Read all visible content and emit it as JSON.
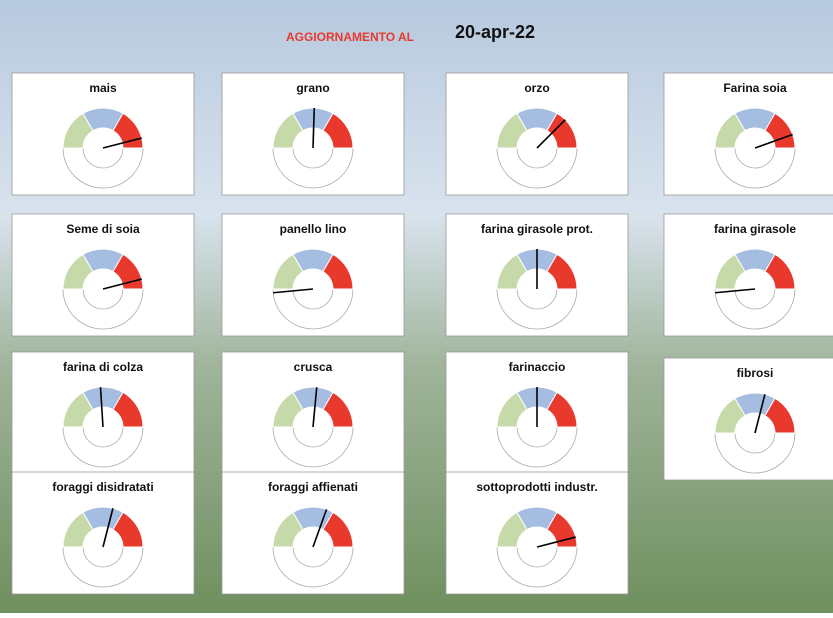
{
  "header": {
    "label": "AGGIORNAMENTO AL",
    "date": "20-apr-22"
  },
  "chart_data": [
    {
      "type": "gauge",
      "title": "mais",
      "value": 92,
      "ylim": [
        0,
        100
      ],
      "colors": [
        "#c6d9a9",
        "#a5bde1",
        "#e8392c"
      ]
    },
    {
      "type": "gauge",
      "title": "grano",
      "value": 51,
      "ylim": [
        0,
        100
      ],
      "colors": [
        "#c6d9a9",
        "#a5bde1",
        "#e8392c"
      ]
    },
    {
      "type": "gauge",
      "title": "orzo",
      "value": 75,
      "ylim": [
        0,
        100
      ],
      "colors": [
        "#c6d9a9",
        "#a5bde1",
        "#e8392c"
      ]
    },
    {
      "type": "gauge",
      "title": "Farina soia",
      "value": 89,
      "ylim": [
        0,
        100
      ],
      "colors": [
        "#c6d9a9",
        "#a5bde1",
        "#e8392c"
      ]
    },
    {
      "type": "gauge",
      "title": "Seme di soia",
      "value": 92,
      "ylim": [
        0,
        100
      ],
      "colors": [
        "#c6d9a9",
        "#a5bde1",
        "#e8392c"
      ]
    },
    {
      "type": "gauge",
      "title": "panello lino",
      "value": -3,
      "ylim": [
        0,
        100
      ],
      "colors": [
        "#c6d9a9",
        "#a5bde1",
        "#e8392c"
      ]
    },
    {
      "type": "gauge",
      "title": "farina girasole prot.",
      "value": 50,
      "ylim": [
        0,
        100
      ],
      "colors": [
        "#c6d9a9",
        "#a5bde1",
        "#e8392c"
      ]
    },
    {
      "type": "gauge",
      "title": "farina girasole",
      "value": -3,
      "ylim": [
        0,
        100
      ],
      "colors": [
        "#c6d9a9",
        "#a5bde1",
        "#e8392c"
      ]
    },
    {
      "type": "gauge",
      "title": "farina di colza",
      "value": 48,
      "ylim": [
        0,
        100
      ],
      "colors": [
        "#c6d9a9",
        "#a5bde1",
        "#e8392c"
      ]
    },
    {
      "type": "gauge",
      "title": "crusca",
      "value": 53,
      "ylim": [
        0,
        100
      ],
      "colors": [
        "#c6d9a9",
        "#a5bde1",
        "#e8392c"
      ]
    },
    {
      "type": "gauge",
      "title": "farinaccio",
      "value": 50,
      "ylim": [
        0,
        100
      ],
      "colors": [
        "#c6d9a9",
        "#a5bde1",
        "#e8392c"
      ]
    },
    {
      "type": "gauge",
      "title": "fibrosi",
      "value": 58,
      "ylim": [
        0,
        100
      ],
      "colors": [
        "#c6d9a9",
        "#a5bde1",
        "#e8392c"
      ]
    },
    {
      "type": "gauge",
      "title": "foraggi disidratati",
      "value": 58,
      "ylim": [
        0,
        100
      ],
      "colors": [
        "#c6d9a9",
        "#a5bde1",
        "#e8392c"
      ]
    },
    {
      "type": "gauge",
      "title": "foraggi affienati",
      "value": 61,
      "ylim": [
        0,
        100
      ],
      "colors": [
        "#c6d9a9",
        "#a5bde1",
        "#e8392c"
      ]
    },
    {
      "type": "gauge",
      "title": "sottoprodotti industr.",
      "value": 92,
      "ylim": [
        0,
        100
      ],
      "colors": [
        "#c6d9a9",
        "#a5bde1",
        "#e8392c"
      ]
    }
  ]
}
